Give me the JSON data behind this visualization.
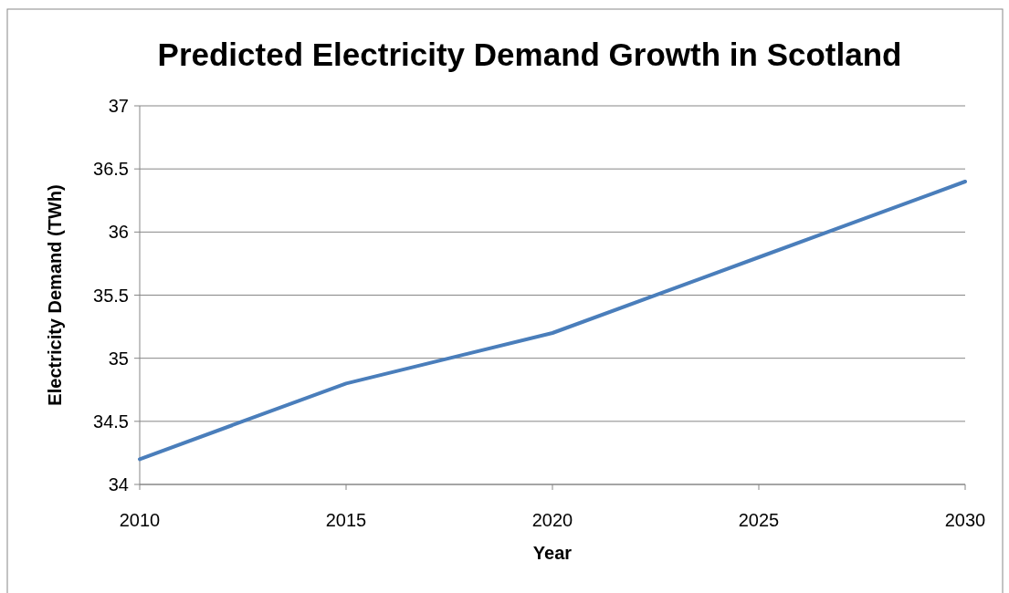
{
  "chart_data": {
    "type": "line",
    "title": "Predicted Electricity Demand Growth in Scotland",
    "xlabel": "Year",
    "ylabel": "Electricity Demand (TWh)",
    "x": [
      2010,
      2015,
      2020,
      2025,
      2030
    ],
    "series": [
      {
        "color": "#4a7ebb",
        "values": [
          34.2,
          34.8,
          35.2,
          35.8,
          36.4
        ]
      }
    ],
    "xlim": [
      2010,
      2030
    ],
    "xticks": [
      2010,
      2015,
      2020,
      2025,
      2030
    ],
    "ylim": [
      34,
      37
    ],
    "yticks": [
      34,
      34.5,
      35,
      35.5,
      36,
      36.5,
      37
    ],
    "grid": "y",
    "marker": "none",
    "line_style": "solid"
  }
}
